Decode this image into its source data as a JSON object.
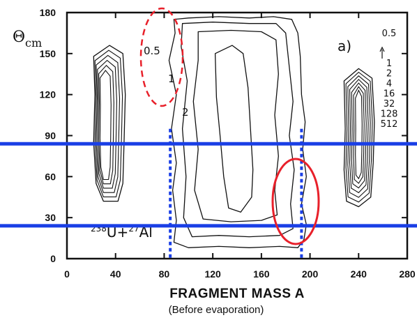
{
  "chart_data": {
    "type": "contour",
    "ylabel": "Θ",
    "ylabel_sub": "cm",
    "xlabel": "FRAGMENT MASS  A",
    "subtitle": "(Before evaporation)",
    "panel_label": "a)",
    "reaction": {
      "a": "238",
      "sym1": "U+",
      "b": "27",
      "sym2": "Al"
    },
    "xlim": [
      0,
      280
    ],
    "ylim": [
      0,
      180
    ],
    "x_ticks": [
      "0",
      "40",
      "80",
      "120",
      "160",
      "200",
      "240",
      "280"
    ],
    "y_ticks": [
      "0",
      "30",
      "60",
      "90",
      "120",
      "150",
      "180"
    ],
    "legend_levels": [
      "0.5",
      "1",
      "2",
      "4",
      "16",
      "32",
      "128",
      "512"
    ],
    "contour_labels": [
      "0.5",
      "1",
      "2"
    ],
    "contours": [
      {
        "level": "0.5",
        "points": [
          [
            88,
            175
          ],
          [
            100,
            176
          ],
          [
            125,
            177
          ],
          [
            150,
            176
          ],
          [
            170,
            177
          ],
          [
            185,
            175
          ],
          [
            190,
            165
          ],
          [
            192,
            148
          ],
          [
            193,
            120
          ],
          [
            196,
            100
          ],
          [
            194,
            80
          ],
          [
            197,
            60
          ],
          [
            193,
            40
          ],
          [
            197,
            25
          ],
          [
            195,
            14
          ],
          [
            190,
            8
          ],
          [
            175,
            9
          ],
          [
            150,
            8
          ],
          [
            125,
            9
          ],
          [
            100,
            8
          ],
          [
            88,
            12
          ],
          [
            90,
            28
          ],
          [
            87,
            50
          ],
          [
            90,
            70
          ],
          [
            86,
            95
          ],
          [
            90,
            120
          ],
          [
            84,
            145
          ],
          [
            89,
            165
          ]
        ]
      },
      {
        "level": "1",
        "points": [
          [
            95,
            172
          ],
          [
            120,
            173
          ],
          [
            150,
            172
          ],
          [
            172,
            172
          ],
          [
            180,
            165
          ],
          [
            183,
            140
          ],
          [
            186,
            115
          ],
          [
            183,
            90
          ],
          [
            187,
            65
          ],
          [
            184,
            40
          ],
          [
            186,
            22
          ],
          [
            175,
            17
          ],
          [
            150,
            16
          ],
          [
            125,
            17
          ],
          [
            103,
            16
          ],
          [
            96,
            30
          ],
          [
            98,
            60
          ],
          [
            95,
            95
          ],
          [
            99,
            130
          ],
          [
            94,
            155
          ]
        ]
      },
      {
        "level": "2",
        "points": [
          [
            108,
            166
          ],
          [
            135,
            167
          ],
          [
            160,
            166
          ],
          [
            172,
            160
          ],
          [
            174,
            135
          ],
          [
            171,
            105
          ],
          [
            174,
            75
          ],
          [
            171,
            50
          ],
          [
            173,
            32
          ],
          [
            160,
            28
          ],
          [
            135,
            27
          ],
          [
            112,
            29
          ],
          [
            105,
            50
          ],
          [
            108,
            80
          ],
          [
            104,
            115
          ],
          [
            108,
            145
          ]
        ]
      },
      {
        "level": "4",
        "points": [
          [
            122,
            150
          ],
          [
            136,
            156
          ],
          [
            145,
            150
          ],
          [
            149,
            125
          ],
          [
            151,
            95
          ],
          [
            153,
            65
          ],
          [
            152,
            45
          ],
          [
            143,
            34
          ],
          [
            133,
            37
          ],
          [
            129,
            60
          ],
          [
            126,
            90
          ],
          [
            123,
            118
          ]
        ]
      },
      {
        "level": "outer-left",
        "points": [
          [
            22,
            148
          ],
          [
            35,
            156
          ],
          [
            46,
            150
          ],
          [
            48,
            120
          ],
          [
            47,
            85
          ],
          [
            46,
            55
          ],
          [
            42,
            42
          ],
          [
            30,
            42
          ],
          [
            24,
            55
          ],
          [
            22,
            85
          ],
          [
            23,
            120
          ]
        ]
      },
      {
        "level": "outer-right",
        "points": [
          [
            228,
            130
          ],
          [
            240,
            139
          ],
          [
            251,
            132
          ],
          [
            253,
            100
          ],
          [
            252,
            70
          ],
          [
            250,
            45
          ],
          [
            240,
            38
          ],
          [
            230,
            42
          ],
          [
            228,
            65
          ],
          [
            229,
            95
          ]
        ]
      }
    ],
    "horizontal_lines_y": [
      84,
      24
    ],
    "vertical_lines_x": [
      85,
      193
    ]
  }
}
